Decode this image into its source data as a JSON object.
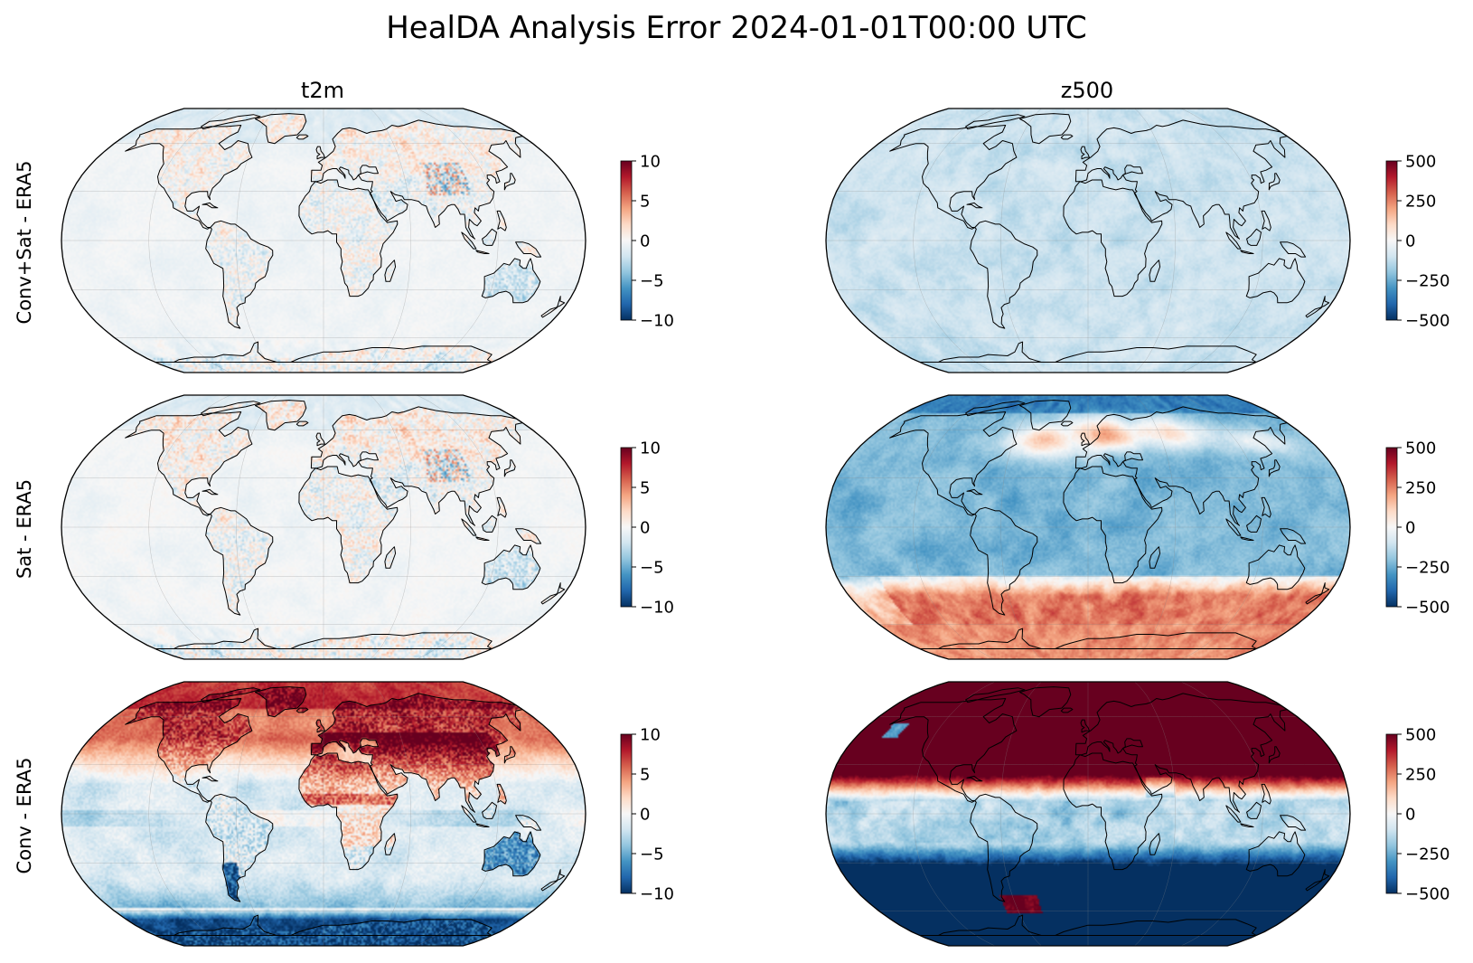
{
  "figure_title": "HealDA Analysis Error 2024-01-01T00:00 UTC",
  "column_titles": [
    "t2m",
    "z500"
  ],
  "row_labels": [
    "Conv+Sat - ERA5",
    "Sat - ERA5",
    "Conv - ERA5"
  ],
  "colormap": "RdBu_r",
  "colormap_stops": [
    "#053061",
    "#2166ac",
    "#4393c3",
    "#92c5de",
    "#d1e5f0",
    "#f7f7f7",
    "#fddbc7",
    "#f4a582",
    "#d6604d",
    "#b2182b",
    "#67001f"
  ],
  "chart_data": [
    {
      "type": "heatmap",
      "variable": "t2m",
      "row": "Conv+Sat - ERA5",
      "projection": "Robinson",
      "colorbar": {
        "range": [
          -10,
          10
        ],
        "ticks": [
          10,
          5,
          0,
          -5,
          -10
        ],
        "tick_labels": [
          "10",
          "5",
          "0",
          "−5",
          "−10"
        ]
      },
      "pattern": {
        "base": -0.4,
        "land_noise": 1.6,
        "highlat_land_warm": 1.4,
        "tibet_speckle": 4.0,
        "ocean_noise": 0.5
      }
    },
    {
      "type": "heatmap",
      "variable": "z500",
      "row": "Conv+Sat - ERA5",
      "projection": "Robinson",
      "colorbar": {
        "range": [
          -500,
          500
        ],
        "ticks": [
          500,
          250,
          0,
          -250,
          -500
        ],
        "tick_labels": [
          "500",
          "250",
          "0",
          "−250",
          "−500"
        ]
      },
      "pattern": {
        "base": -110,
        "noise": 50
      }
    },
    {
      "type": "heatmap",
      "variable": "t2m",
      "row": "Sat - ERA5",
      "projection": "Robinson",
      "colorbar": {
        "range": [
          -10,
          10
        ],
        "ticks": [
          10,
          5,
          0,
          -5,
          -10
        ],
        "tick_labels": [
          "10",
          "5",
          "0",
          "−5",
          "−10"
        ]
      },
      "pattern": {
        "base": -0.3,
        "land_noise": 1.8,
        "highlat_land_warm": 1.6,
        "tibet_speckle": 3.5,
        "ocean_noise": 0.6
      }
    },
    {
      "type": "heatmap",
      "variable": "z500",
      "row": "Sat - ERA5",
      "projection": "Robinson",
      "colorbar": {
        "range": [
          -500,
          500
        ],
        "ticks": [
          500,
          250,
          0,
          -250,
          -500
        ],
        "tick_labels": [
          "500",
          "250",
          "0",
          "−250",
          "−500"
        ]
      },
      "pattern": {
        "base": -230,
        "north_polar": -350,
        "north_atlantic_europe": 420,
        "north_pacific": 180,
        "southern_band": 300,
        "noise": 60
      }
    },
    {
      "type": "heatmap",
      "variable": "t2m",
      "row": "Conv - ERA5",
      "projection": "Robinson",
      "colorbar": {
        "range": [
          -10,
          10
        ],
        "ticks": [
          10,
          5,
          0,
          -5,
          -10
        ],
        "tick_labels": [
          "10",
          "5",
          "0",
          "−5",
          "−10"
        ]
      },
      "pattern": {
        "base": -1.5,
        "north_warm": 9.0,
        "land_warm": 4.0,
        "australia": -6.0,
        "antarctic": -9.0,
        "noise": 1.2
      }
    },
    {
      "type": "heatmap",
      "variable": "z500",
      "row": "Conv - ERA5",
      "projection": "Robinson",
      "colorbar": {
        "range": [
          -500,
          500
        ],
        "ticks": [
          500,
          250,
          0,
          -250,
          -500
        ],
        "tick_labels": [
          "500",
          "250",
          "0",
          "−250",
          "−500"
        ]
      },
      "pattern": {
        "north": 600,
        "tropics": -150,
        "south": -600,
        "drake_passage": 500,
        "noise": 70
      }
    }
  ]
}
